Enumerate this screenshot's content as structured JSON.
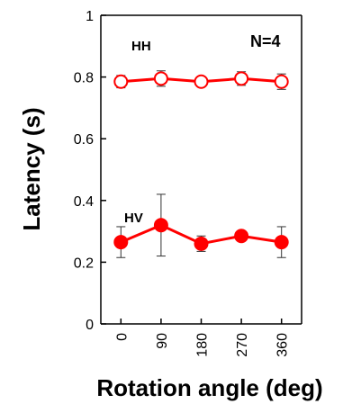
{
  "chart_data": {
    "type": "line",
    "xlabel": "Rotation angle (deg)",
    "ylabel": "Latency (s)",
    "x": [
      0,
      90,
      180,
      270,
      360
    ],
    "x_tick_labels": [
      "0",
      "90",
      "180",
      "270",
      "360"
    ],
    "ylim": [
      0,
      1
    ],
    "y_ticks": [
      "0",
      "0.2",
      "0.4",
      "0.6",
      "0.8",
      "1"
    ],
    "grid": false,
    "series": [
      {
        "name": "HH",
        "values": [
          0.785,
          0.795,
          0.785,
          0.795,
          0.785
        ],
        "errors": [
          0.02,
          0.025,
          0.012,
          0.022,
          0.025
        ],
        "marker": "open-circle",
        "color": "#ff0000"
      },
      {
        "name": "HV",
        "values": [
          0.265,
          0.32,
          0.26,
          0.285,
          0.265
        ],
        "errors": [
          0.05,
          0.1,
          0.025,
          0.015,
          0.05
        ],
        "marker": "filled-circle",
        "color": "#ff0000"
      }
    ],
    "annotations": [
      "HH",
      "HV",
      "N=4"
    ]
  }
}
